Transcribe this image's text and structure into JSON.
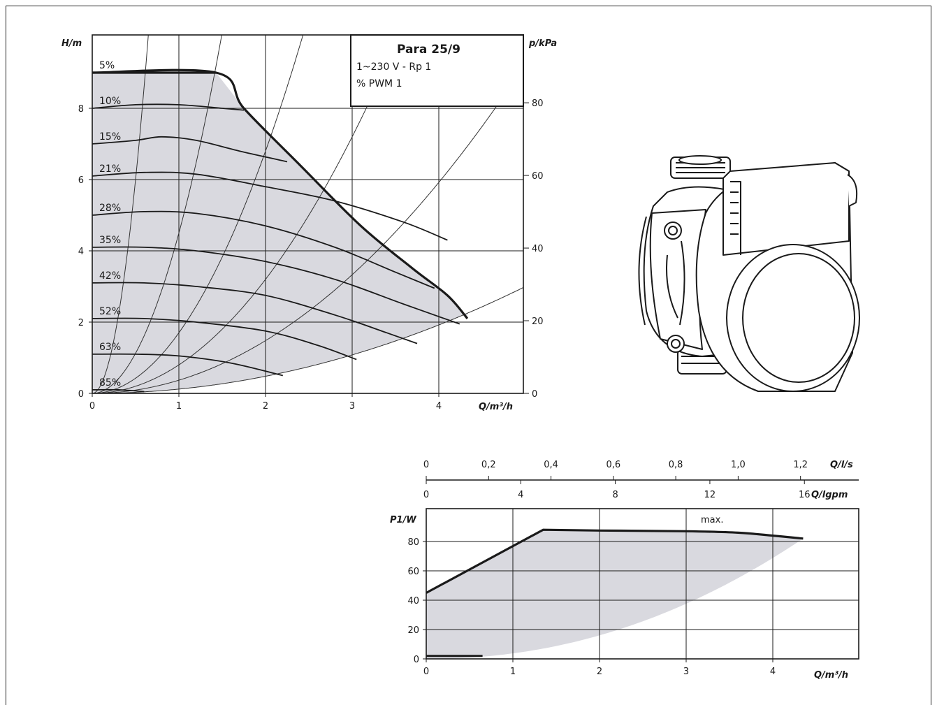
{
  "chart_data": [
    {
      "type": "line",
      "title": "Para 25/9",
      "info": {
        "title": "Para 25/9",
        "line1": "1~230 V - Rp 1",
        "line2": "% PWM 1"
      },
      "xlabel": "Q/m³/h",
      "ylabel": "H/m",
      "ylabel_right": "p/kPa",
      "xlim": [
        0,
        5
      ],
      "ylim": [
        0,
        9.8
      ],
      "ylim_right": [
        0,
        96
      ],
      "x_ticks": [
        "0",
        "1",
        "2",
        "3",
        "4"
      ],
      "y_ticks": [
        "0",
        "2",
        "4",
        "6",
        "8"
      ],
      "y_right_ticks": [
        "0",
        "20",
        "40",
        "60",
        "80"
      ],
      "grid": true,
      "max_curve": [
        [
          0,
          9.0
        ],
        [
          1.43,
          9.0
        ],
        [
          1.75,
          8.0
        ],
        [
          2.4,
          6.4
        ],
        [
          3.1,
          4.7
        ],
        [
          3.7,
          3.5
        ],
        [
          4.1,
          2.75
        ],
        [
          4.33,
          2.1
        ]
      ],
      "series": [
        {
          "name": "5%",
          "values": [
            [
              0,
              9.0
            ],
            [
              1.43,
              9.0
            ]
          ]
        },
        {
          "name": "10%",
          "values": [
            [
              0,
              8.0
            ],
            [
              0.5,
              8.1
            ],
            [
              1.0,
              8.1
            ],
            [
              1.5,
              8.0
            ],
            [
              1.75,
              7.95
            ]
          ]
        },
        {
          "name": "15%",
          "values": [
            [
              0,
              7.0
            ],
            [
              0.5,
              7.1
            ],
            [
              0.8,
              7.2
            ],
            [
              1.2,
              7.1
            ],
            [
              1.7,
              6.8
            ],
            [
              2.25,
              6.5
            ]
          ]
        },
        {
          "name": "21%",
          "values": [
            [
              0,
              6.1
            ],
            [
              0.6,
              6.2
            ],
            [
              1.2,
              6.15
            ],
            [
              2.0,
              5.8
            ],
            [
              2.8,
              5.4
            ],
            [
              3.6,
              4.8
            ],
            [
              4.1,
              4.3
            ]
          ]
        },
        {
          "name": "28%",
          "values": [
            [
              0,
              5.0
            ],
            [
              0.6,
              5.1
            ],
            [
              1.2,
              5.05
            ],
            [
              2.0,
              4.7
            ],
            [
              2.8,
              4.1
            ],
            [
              3.5,
              3.4
            ],
            [
              3.95,
              2.95
            ]
          ]
        },
        {
          "name": "35%",
          "values": [
            [
              0,
              4.1
            ],
            [
              0.6,
              4.1
            ],
            [
              1.2,
              4.0
            ],
            [
              2.0,
              3.7
            ],
            [
              2.8,
              3.2
            ],
            [
              3.6,
              2.5
            ],
            [
              4.24,
              1.95
            ]
          ]
        },
        {
          "name": "42%",
          "values": [
            [
              0,
              3.1
            ],
            [
              0.6,
              3.1
            ],
            [
              1.2,
              3.0
            ],
            [
              2.0,
              2.75
            ],
            [
              2.8,
              2.2
            ],
            [
              3.4,
              1.7
            ],
            [
              3.75,
              1.4
            ]
          ]
        },
        {
          "name": "52%",
          "values": [
            [
              0,
              2.1
            ],
            [
              0.6,
              2.1
            ],
            [
              1.2,
              2.0
            ],
            [
              2.0,
              1.75
            ],
            [
              2.6,
              1.35
            ],
            [
              3.05,
              0.95
            ]
          ]
        },
        {
          "name": "63%",
          "values": [
            [
              0,
              1.1
            ],
            [
              0.5,
              1.1
            ],
            [
              1.0,
              1.05
            ],
            [
              1.6,
              0.85
            ],
            [
              2.2,
              0.5
            ]
          ]
        },
        {
          "name": "85%",
          "values": [
            [
              0,
              0.1
            ],
            [
              0.3,
              0.1
            ],
            [
              0.6,
              0.05
            ]
          ]
        }
      ],
      "system_curves_k": [
        24.0,
        4.5,
        1.7,
        0.8,
        0.37,
        0.12
      ]
    },
    {
      "type": "line",
      "xlabel": "Q/m³/h",
      "ylabel": "P1/W",
      "xlim": [
        0,
        4.9
      ],
      "ylim": [
        0,
        103
      ],
      "x_ticks": [
        "0",
        "1",
        "2",
        "3",
        "4"
      ],
      "y_ticks": [
        "0",
        "20",
        "40",
        "60",
        "80"
      ],
      "top_axis_ls": {
        "label": "Q/l/s",
        "ticks": [
          "0",
          "0,2",
          "0,4",
          "0,6",
          "0,8",
          "1,0",
          "1,2"
        ]
      },
      "top_axis_lgpm": {
        "label": "Q/lgpm",
        "ticks": [
          "0",
          "4",
          "8",
          "12",
          "16"
        ]
      },
      "annotation": "max.",
      "grid": true,
      "max_curve": [
        [
          0,
          45
        ],
        [
          1.35,
          88
        ],
        [
          2.0,
          87.5
        ],
        [
          3.0,
          87
        ],
        [
          3.6,
          86
        ],
        [
          4.0,
          84
        ],
        [
          4.35,
          82
        ]
      ],
      "min_curve": [
        [
          0,
          2
        ],
        [
          0.65,
          2
        ]
      ]
    }
  ]
}
